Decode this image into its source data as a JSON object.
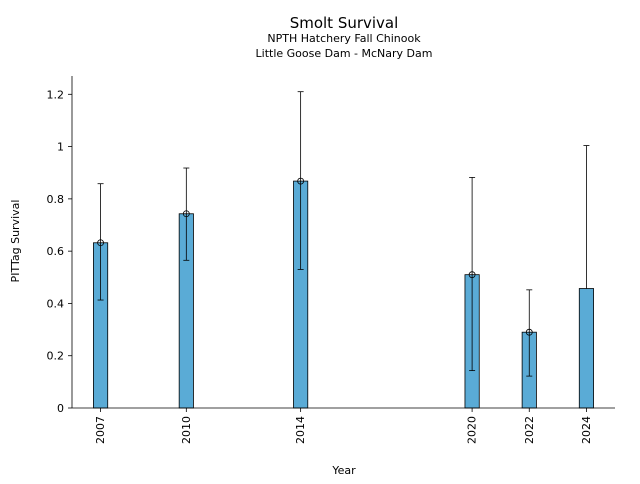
{
  "chart_data": {
    "type": "bar",
    "title": "Smolt Survival",
    "subtitle_lines": [
      "NPTH Hatchery Fall Chinook",
      "Little Goose Dam - McNary Dam"
    ],
    "xlabel": "Year",
    "ylabel": "PITTag Survival",
    "categories": [
      "2007",
      "2010",
      "2014",
      "2020",
      "2022",
      "2024"
    ],
    "x": [
      2007,
      2010,
      2014,
      2020,
      2022,
      2024
    ],
    "values": [
      0.632,
      0.743,
      0.868,
      0.51,
      0.29,
      0.457
    ],
    "error_low": [
      0.413,
      0.565,
      0.53,
      0.143,
      0.122,
      null
    ],
    "error_high": [
      0.858,
      0.918,
      1.21,
      0.882,
      0.452,
      1.004
    ],
    "markers": [
      true,
      true,
      true,
      true,
      true,
      false
    ],
    "ylim": [
      0,
      1.27
    ],
    "xlim": [
      2006.0,
      2025.0
    ],
    "yticks": [
      0,
      0.2,
      0.4,
      0.6,
      0.8,
      1,
      1.2
    ],
    "ytick_labels": [
      "0",
      "0.2",
      "0.4",
      "0.6",
      "0.8",
      "1",
      "1.2"
    ],
    "grid": false,
    "bar_color": "#5aabd6",
    "edge_color": "#000000"
  }
}
